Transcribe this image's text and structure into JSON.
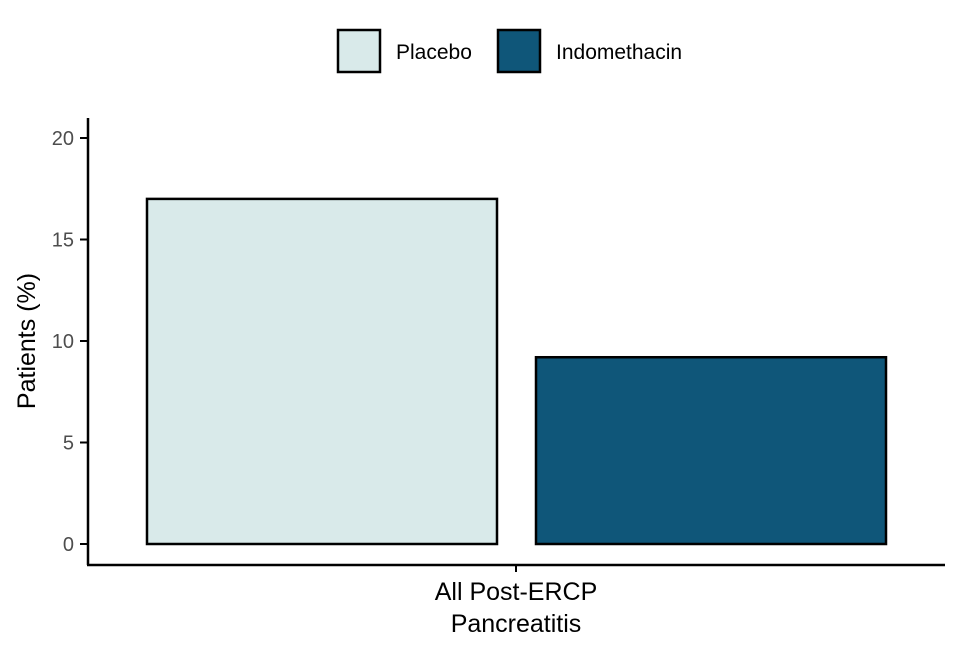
{
  "chart_data": {
    "type": "bar",
    "categories": [
      "All Post-ERCP Pancreatitis"
    ],
    "category_label_lines": [
      "All Post-ERCP",
      "Pancreatitis"
    ],
    "series": [
      {
        "name": "Placebo",
        "values": [
          17.0
        ],
        "color": "#d9eaea"
      },
      {
        "name": "Indomethacin",
        "values": [
          9.2
        ],
        "color": "#0f5679"
      }
    ],
    "title": "",
    "xlabel": "",
    "ylabel": "Patients (%)",
    "ylim": [
      0,
      20
    ],
    "yticks": [
      0,
      5,
      10,
      15,
      20
    ],
    "grid": false,
    "legend_position": "top"
  }
}
